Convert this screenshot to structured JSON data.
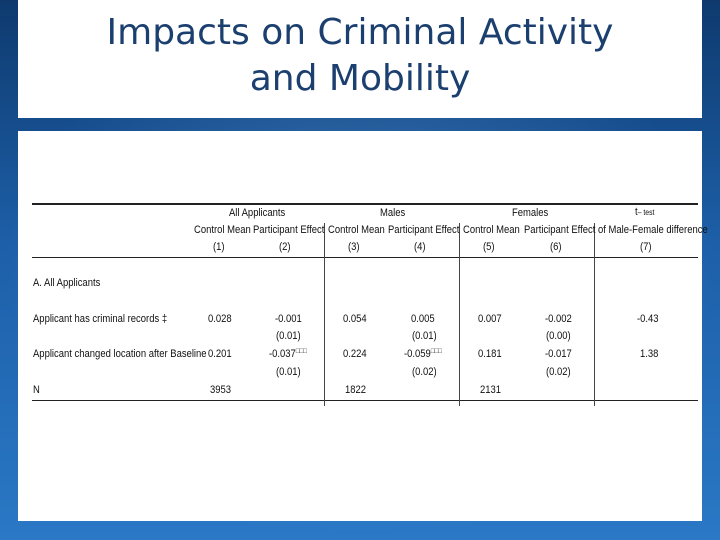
{
  "slide": {
    "title_line1": "Impacts on Criminal Activity",
    "title_line2": "and Mobility"
  },
  "table": {
    "group_headers": {
      "all": "All Applicants",
      "males": "Males",
      "females": "Females",
      "t": "t",
      "t_sub": "– test",
      "t2": "of Male-Female difference"
    },
    "col_headers": [
      "Control Mean",
      "Participant Effect",
      "Control Mean",
      "Participant Effect",
      "Control Mean",
      "Participant Effect"
    ],
    "col_numbers": [
      "(1)",
      "(2)",
      "(3)",
      "(4)",
      "(5)",
      "(6)",
      "(7)"
    ],
    "section_label": "A. All Applicants",
    "rows": [
      {
        "label": "Applicant has criminal records ‡",
        "values": [
          "0.028",
          "-0.001",
          "0.054",
          "0.005",
          "0.007",
          "-0.002",
          "-0.43"
        ],
        "se": [
          "",
          "(0.01)",
          "",
          "(0.01)",
          "",
          "(0.00)",
          ""
        ]
      },
      {
        "label": "Applicant changed location after Baseline",
        "values": [
          "0.201",
          "-0.037",
          "0.224",
          "-0.059",
          "0.181",
          "-0.017",
          "1.38"
        ],
        "stars": [
          "",
          "□□□",
          "",
          "□□□",
          "",
          "",
          ""
        ],
        "se": [
          "",
          "(0.01)",
          "",
          "(0.02)",
          "",
          "(0.02)",
          ""
        ]
      },
      {
        "label": "N",
        "values": [
          "3953",
          "",
          "1822",
          "",
          "2131",
          "",
          ""
        ]
      }
    ]
  },
  "colors": {
    "background": "#1d5fa8",
    "title": "#1b3f6f"
  }
}
